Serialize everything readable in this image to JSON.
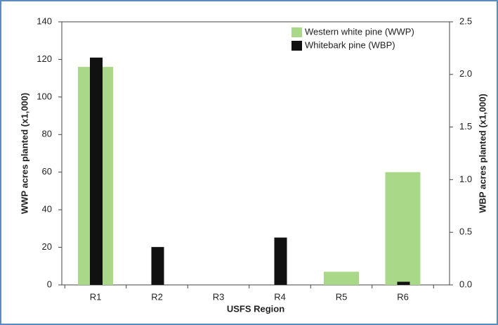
{
  "chart_data": {
    "type": "bar",
    "categories": [
      "R1",
      "R2",
      "R3",
      "R4",
      "R5",
      "R6"
    ],
    "x_label": "USFS Region",
    "y_label": "WWP acres planted (x1,000)",
    "y2_label": "WBP acres planted (x1,000)",
    "ylim": [
      0,
      140
    ],
    "yticks": [
      0,
      20,
      40,
      60,
      80,
      100,
      120,
      140
    ],
    "y2lim": [
      0,
      2.5
    ],
    "y2ticks": [
      {
        "value": 0,
        "label": "0.0"
      },
      0.5,
      {
        "value": 1,
        "label": "1.0"
      },
      1.5,
      {
        "value": 2,
        "label": "2.0"
      },
      2.5
    ],
    "legend": "top-right",
    "series": [
      {
        "name": "Western white pine (WWP)",
        "color": "#a8d888",
        "values": [
          116,
          0,
          0,
          0,
          7,
          60
        ]
      },
      {
        "name": "Whitebark pine (WBP)",
        "color": "#111111",
        "axis": "y2",
        "values": [
          2.16,
          0.36,
          0,
          0.45,
          0,
          0.03
        ]
      }
    ]
  }
}
